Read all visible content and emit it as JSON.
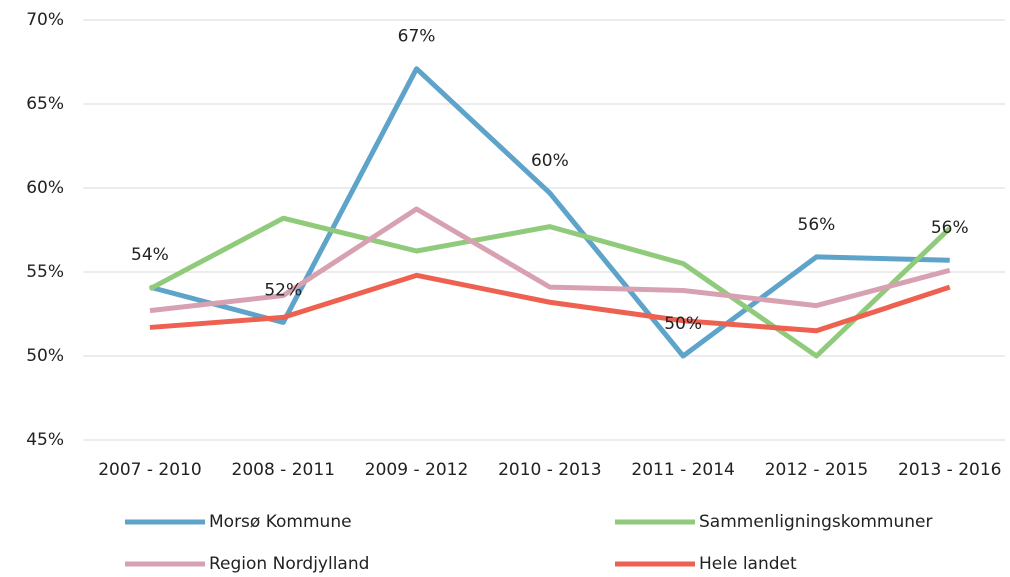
{
  "chart_data": {
    "type": "line",
    "categories": [
      "2007 - 2010",
      "2008 - 2011",
      "2009 - 2012",
      "2010 - 2013",
      "2011 - 2014",
      "2012 - 2015",
      "2013 - 2016"
    ],
    "series": [
      {
        "name": "Morsø Kommune",
        "color": "#5ea3c9",
        "values": [
          54.1,
          52.0,
          67.1,
          59.7,
          50.0,
          55.9,
          55.7
        ],
        "value_labels": [
          "54%",
          "52%",
          "67%",
          "60%",
          "50%",
          "56%",
          "56%"
        ]
      },
      {
        "name": "Sammenligningskommuner",
        "color": "#8fcb7b",
        "values": [
          54.0,
          58.2,
          56.25,
          57.7,
          55.5,
          50.0,
          57.6
        ]
      },
      {
        "name": "Region Nordjylland",
        "color": "#d8a1b1",
        "values": [
          52.7,
          53.6,
          58.75,
          54.1,
          53.9,
          53.0,
          55.1
        ]
      },
      {
        "name": "Hele landet",
        "color": "#ee6150",
        "values": [
          51.7,
          52.3,
          54.8,
          53.2,
          52.1,
          51.5,
          54.1
        ]
      }
    ],
    "ylim": [
      45,
      70
    ],
    "yticks": [
      {
        "value": 45,
        "label": "45%"
      },
      {
        "value": 50,
        "label": "50%"
      },
      {
        "value": 55,
        "label": "55%"
      },
      {
        "value": 60,
        "label": "60%"
      },
      {
        "value": 65,
        "label": "65%"
      },
      {
        "value": 70,
        "label": "70%"
      }
    ],
    "grid": true
  }
}
